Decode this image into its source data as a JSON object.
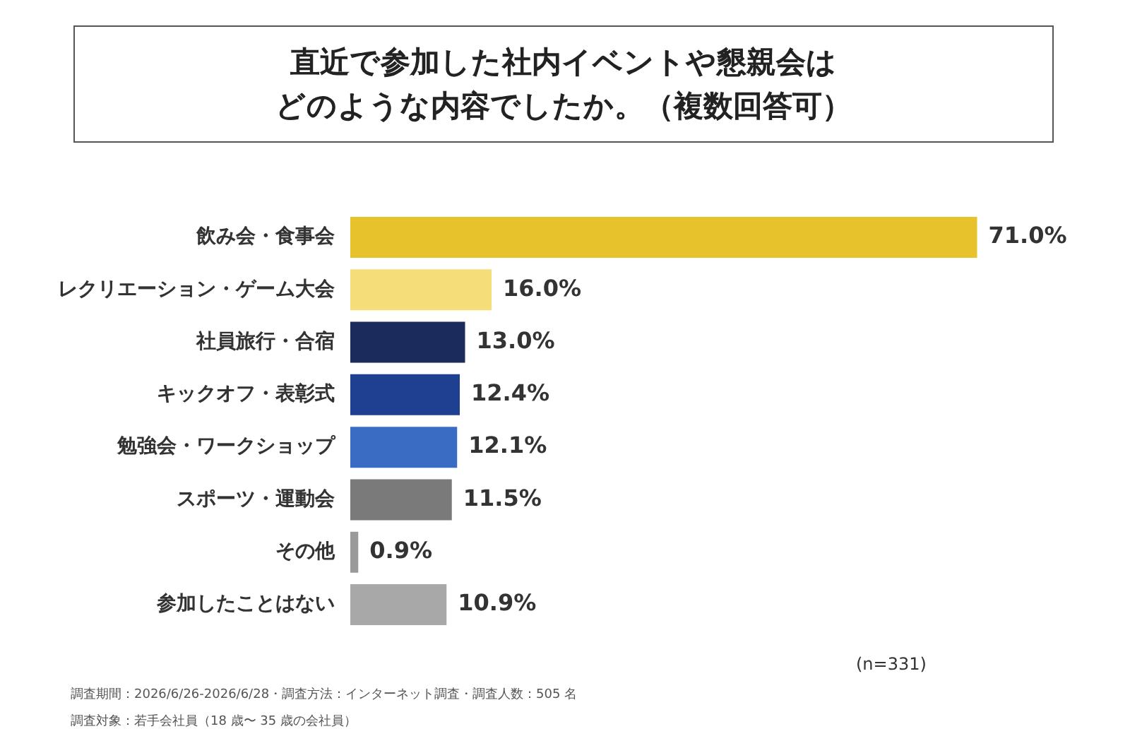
{
  "chart_data": {
    "type": "bar",
    "orientation": "horizontal",
    "title": "直近で参加した社内イベントや懇親会はどのような内容でしたか。（複数回答可）",
    "categories": [
      "飲み会・食事会",
      "レクリエーション・ゲーム大会",
      "社員旅行・合宿",
      "キックオフ・表彰式",
      "勉強会・ワークショップ",
      "スポーツ・運動会",
      "その他",
      "参加したことはない"
    ],
    "values": [
      71.0,
      16.0,
      13.0,
      12.4,
      12.1,
      11.5,
      0.9,
      10.9
    ],
    "value_labels": [
      "71.0%",
      "16.0%",
      "13.0%",
      "12.4%",
      "12.1%",
      "11.5%",
      "0.9%",
      "10.9%"
    ],
    "colors": [
      "#e8c22c",
      "#f5dd7a",
      "#1b2b5c",
      "#1f3f90",
      "#3b6cc4",
      "#7a7a7a",
      "#9a9a9a",
      "#a8a8a8"
    ],
    "tick_labels": "y",
    "grid": false,
    "legend": false,
    "annotations": [
      "(n=331)",
      "調査期間：2026/6/26-2026/6/28・調査方法：インターネット調査・調査人数：505 名",
      "調査対象：若手会社員（18 歳〜 35 歳の会社員）"
    ]
  }
}
